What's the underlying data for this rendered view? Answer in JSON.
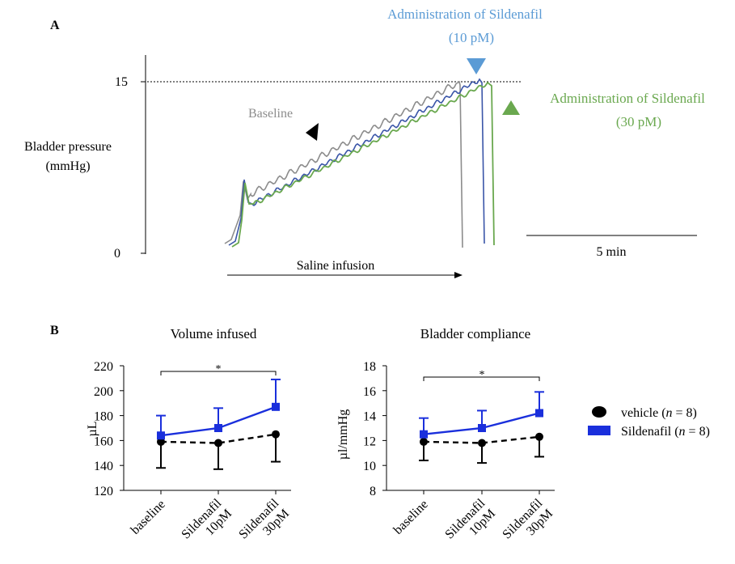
{
  "panel_a": {
    "label": "A",
    "ylabel_line1": "Bladder pressure",
    "ylabel_line2": "(mmHg)",
    "ytick_top": "15",
    "ytick_bottom": "0",
    "baseline_label": "Baseline",
    "admin10_line1": "Administration of Sildenafil",
    "admin10_line2": "(10 pM)",
    "admin30_line1": "Administration of Sildenafil",
    "admin30_line2": "(30 pM)",
    "scalebar_label": "5 min",
    "infusion_label": "Saline infusion",
    "colors": {
      "baseline": "#8c8c8c",
      "sild10": "#3a55a8",
      "sild30": "#6aa84f",
      "arrow10": "#5b9bd5",
      "arrow30": "#6aa84f",
      "admin10_text": "#5b9bd5",
      "admin30_text": "#6aa84f"
    }
  },
  "panel_b": {
    "label": "B",
    "legend": {
      "vehicle_label": "vehicle (",
      "vehicle_n": "n",
      "vehicle_eq": " = 8)",
      "sild_label": "Sildenafil (",
      "sild_n": "n",
      "sild_eq": " = 8)"
    }
  },
  "chart_data": [
    {
      "type": "line",
      "title": "Volume infused",
      "ylabel": "µL",
      "xlabel": "",
      "categories": [
        "baseline",
        "Sildenafil 10pM",
        "Sildenafil 30pM"
      ],
      "category_lines": [
        [
          "baseline"
        ],
        [
          "Sildenafil",
          "10pM"
        ],
        [
          "Sildenafil",
          "30pM"
        ]
      ],
      "ylim": [
        120,
        220
      ],
      "yticks": [
        120,
        140,
        160,
        180,
        200,
        220
      ],
      "significance": "*",
      "series": [
        {
          "name": "vehicle (n = 8)",
          "values": [
            159,
            158,
            165
          ],
          "errors": [
            21,
            21,
            22
          ],
          "error_dir": "down",
          "color": "#000000",
          "marker": "circle",
          "dashed": true
        },
        {
          "name": "Sildenafil (n = 8)",
          "values": [
            164,
            170,
            187
          ],
          "errors": [
            16,
            16,
            22
          ],
          "error_dir": "up",
          "color": "#1a2fdc",
          "marker": "square",
          "dashed": false
        }
      ]
    },
    {
      "type": "line",
      "title": "Bladder compliance",
      "ylabel": "µl/mmHg",
      "xlabel": "",
      "categories": [
        "baseline",
        "Sildenafil 10pM",
        "Sildenafil 30pM"
      ],
      "category_lines": [
        [
          "baseline"
        ],
        [
          "Sildenafil",
          "10pM"
        ],
        [
          "Sildenafil",
          "30pM"
        ]
      ],
      "ylim": [
        8,
        18
      ],
      "yticks": [
        8,
        10,
        12,
        14,
        16,
        18
      ],
      "significance": "*",
      "series": [
        {
          "name": "vehicle (n = 8)",
          "values": [
            11.9,
            11.8,
            12.3
          ],
          "errors": [
            1.5,
            1.6,
            1.6
          ],
          "error_dir": "down",
          "color": "#000000",
          "marker": "circle",
          "dashed": true
        },
        {
          "name": "Sildenafil (n = 8)",
          "values": [
            12.5,
            13.0,
            14.2
          ],
          "errors": [
            1.3,
            1.4,
            1.7
          ],
          "error_dir": "up",
          "color": "#1a2fdc",
          "marker": "square",
          "dashed": false
        }
      ]
    }
  ]
}
